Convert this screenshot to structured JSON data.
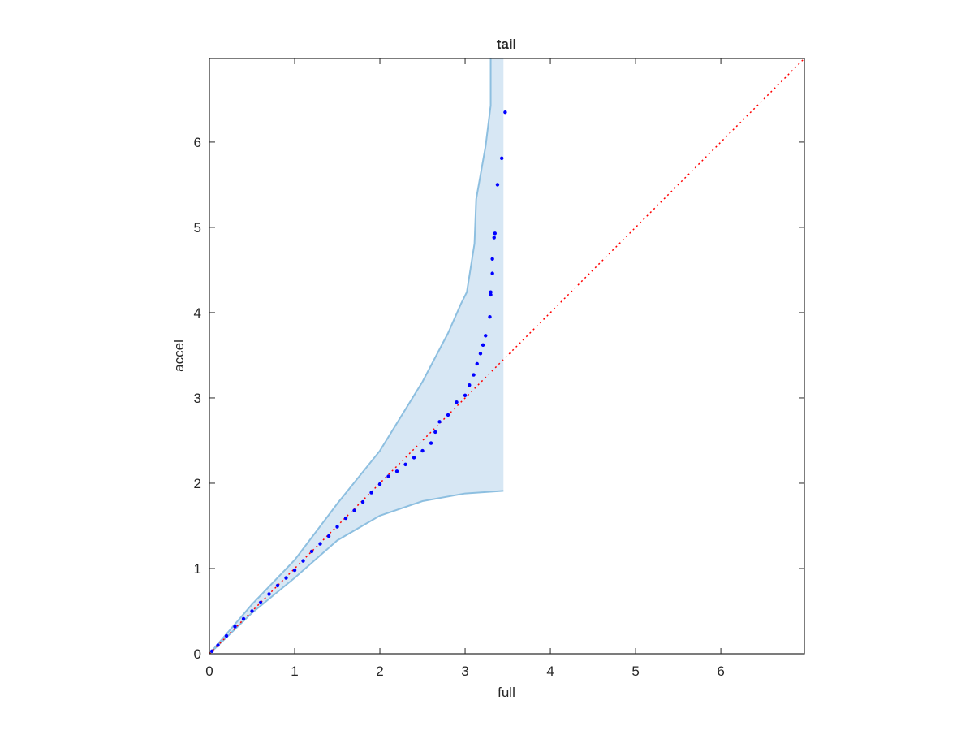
{
  "chart_data": {
    "type": "qq",
    "title": "tail",
    "xlabel": "full",
    "ylabel": "accel",
    "xlim": [
      0,
      6.98
    ],
    "ylim": [
      0,
      6.98
    ],
    "xticks": [
      0,
      1,
      2,
      3,
      4,
      5,
      6
    ],
    "yticks": [
      0,
      1,
      2,
      3,
      4,
      5,
      6
    ],
    "points": {
      "color": "#0000ff",
      "x": [
        0.03,
        0.1,
        0.2,
        0.3,
        0.4,
        0.5,
        0.6,
        0.7,
        0.8,
        0.9,
        1.0,
        1.1,
        1.2,
        1.3,
        1.4,
        1.5,
        1.6,
        1.7,
        1.8,
        1.9,
        2.0,
        2.1,
        2.2,
        2.3,
        2.4,
        2.5,
        2.6,
        2.65,
        2.7,
        2.8,
        2.9,
        3.0,
        3.05,
        3.1,
        3.14,
        3.18,
        3.21,
        3.24,
        3.29,
        3.3,
        3.3,
        3.32,
        3.32,
        3.34,
        3.35,
        3.38,
        3.43,
        3.47
      ],
      "y": [
        0.03,
        0.1,
        0.21,
        0.32,
        0.41,
        0.5,
        0.6,
        0.7,
        0.8,
        0.89,
        0.98,
        1.09,
        1.2,
        1.29,
        1.38,
        1.49,
        1.59,
        1.68,
        1.78,
        1.89,
        1.99,
        2.08,
        2.14,
        2.22,
        2.3,
        2.38,
        2.47,
        2.6,
        2.72,
        2.8,
        2.95,
        3.03,
        3.15,
        3.27,
        3.4,
        3.52,
        3.62,
        3.73,
        3.95,
        4.21,
        4.24,
        4.46,
        4.63,
        4.88,
        4.93,
        5.5,
        5.81,
        6.35
      ]
    },
    "band_color": "#8dbfe0",
    "band_fill": "#d7e7f4",
    "band_upper": {
      "x": [
        0,
        0.5,
        1.0,
        1.5,
        2.0,
        2.5,
        2.8,
        2.95,
        3.02,
        3.05,
        3.11,
        3.13,
        3.24,
        3.3,
        3.3
      ],
      "y": [
        0,
        0.58,
        1.1,
        1.76,
        2.38,
        3.19,
        3.76,
        4.1,
        4.24,
        4.43,
        4.81,
        5.33,
        5.95,
        6.43,
        6.98
      ]
    },
    "band_lower": {
      "x": [
        0,
        0.5,
        1.0,
        1.5,
        2.0,
        2.5,
        3.0,
        3.45
      ],
      "y": [
        0,
        0.48,
        0.89,
        1.33,
        1.62,
        1.79,
        1.88,
        1.91
      ]
    },
    "reference_line": {
      "color": "#ff0000",
      "x": [
        0,
        6.98
      ],
      "y": [
        0,
        6.98
      ]
    }
  }
}
